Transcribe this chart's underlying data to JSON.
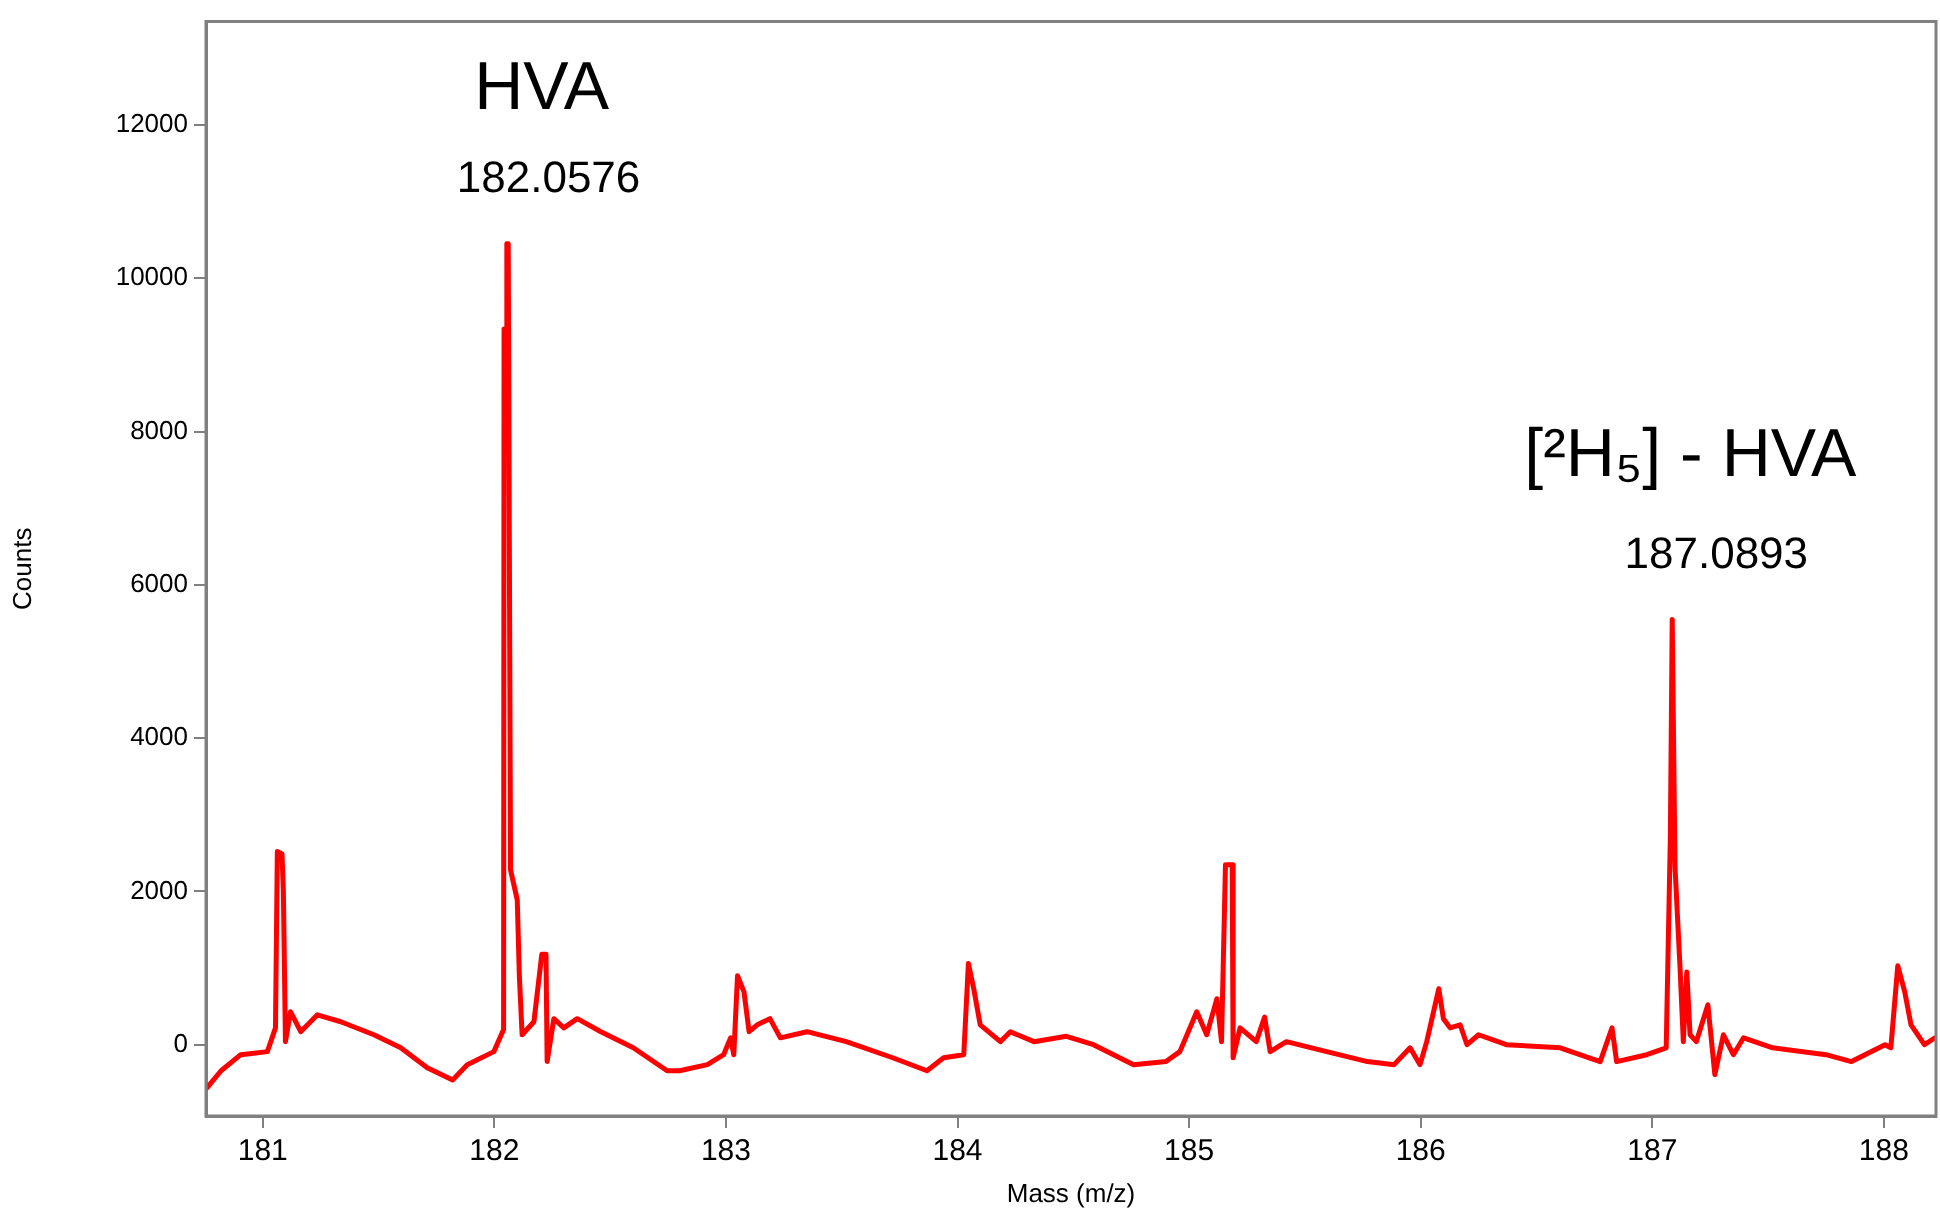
{
  "chart_data": {
    "type": "line",
    "xlabel": "Mass (m/z)",
    "ylabel": "Counts",
    "xlim": [
      180.755,
      188.225
    ],
    "xticks": [
      181,
      182,
      183,
      184,
      185,
      186,
      187,
      188
    ],
    "ylim": [
      -930,
      13350
    ],
    "yticks": [
      0,
      2000,
      4000,
      6000,
      8000,
      10000,
      12000
    ],
    "grid": false,
    "legend": false,
    "marker": "none",
    "line_style": "solid",
    "annotations": [
      "HVA",
      "182.0576",
      "[²H₅] - HVA",
      "187.0893"
    ],
    "series": [
      {
        "color": "#ff0000",
        "x": [
          180.76,
          180.82,
          180.905,
          181.02,
          181.055,
          181.063,
          181.083,
          181.089,
          181.098,
          181.12,
          181.164,
          181.236,
          181.337,
          181.48,
          181.596,
          181.71,
          181.82,
          181.883,
          181.998,
          182.04,
          182.042,
          182.052,
          182.054,
          182.06,
          182.07,
          182.099,
          182.108,
          182.12,
          182.171,
          182.205,
          182.223,
          182.228,
          182.257,
          182.3,
          182.358,
          182.46,
          182.6,
          182.746,
          182.8,
          182.92,
          182.99,
          183.02,
          183.034,
          183.05,
          183.078,
          183.1,
          183.135,
          183.19,
          183.235,
          183.35,
          183.52,
          183.72,
          183.868,
          183.94,
          184.027,
          184.047,
          184.07,
          184.098,
          184.185,
          184.228,
          184.33,
          184.47,
          184.587,
          184.76,
          184.9,
          184.96,
          185.033,
          185.076,
          185.12,
          185.14,
          185.157,
          185.186,
          185.19,
          185.22,
          185.29,
          185.326,
          185.35,
          185.42,
          185.594,
          185.77,
          185.885,
          185.954,
          185.997,
          186.026,
          186.078,
          186.098,
          186.127,
          186.17,
          186.2,
          186.25,
          186.37,
          186.602,
          186.775,
          186.826,
          186.846,
          186.976,
          187.06,
          187.078,
          187.086,
          187.093,
          187.098,
          187.12,
          187.134,
          187.149,
          187.163,
          187.19,
          187.24,
          187.27,
          187.307,
          187.35,
          187.394,
          187.52,
          187.75,
          187.86,
          188.005,
          188.03,
          188.06,
          188.09,
          188.117,
          188.175,
          188.22
        ],
        "values": [
          -560,
          -340,
          -130,
          -90,
          220,
          2520,
          2490,
          2020,
          40,
          430,
          170,
          390,
          300,
          130,
          -40,
          -300,
          -460,
          -260,
          -90,
          200,
          9340,
          9340,
          10450,
          10450,
          2280,
          1890,
          900,
          130,
          300,
          1180,
          1180,
          -220,
          340,
          220,
          340,
          170,
          -40,
          -340,
          -340,
          -260,
          -130,
          90,
          -130,
          900,
          690,
          170,
          260,
          340,
          90,
          170,
          40,
          -170,
          -340,
          -170,
          -130,
          1060,
          730,
          260,
          40,
          170,
          40,
          110,
          0,
          -260,
          -220,
          -90,
          430,
          130,
          600,
          40,
          2350,
          2350,
          -170,
          220,
          40,
          360,
          -90,
          40,
          -90,
          -220,
          -260,
          -40,
          -260,
          40,
          730,
          340,
          220,
          260,
          0,
          130,
          0,
          -40,
          -220,
          220,
          -220,
          -130,
          -40,
          2720,
          5550,
          5550,
          2320,
          990,
          40,
          950,
          130,
          40,
          520,
          -390,
          130,
          -130,
          90,
          -40,
          -130,
          -220,
          0,
          -40,
          1030,
          690,
          260,
          0,
          90
        ]
      }
    ]
  }
}
